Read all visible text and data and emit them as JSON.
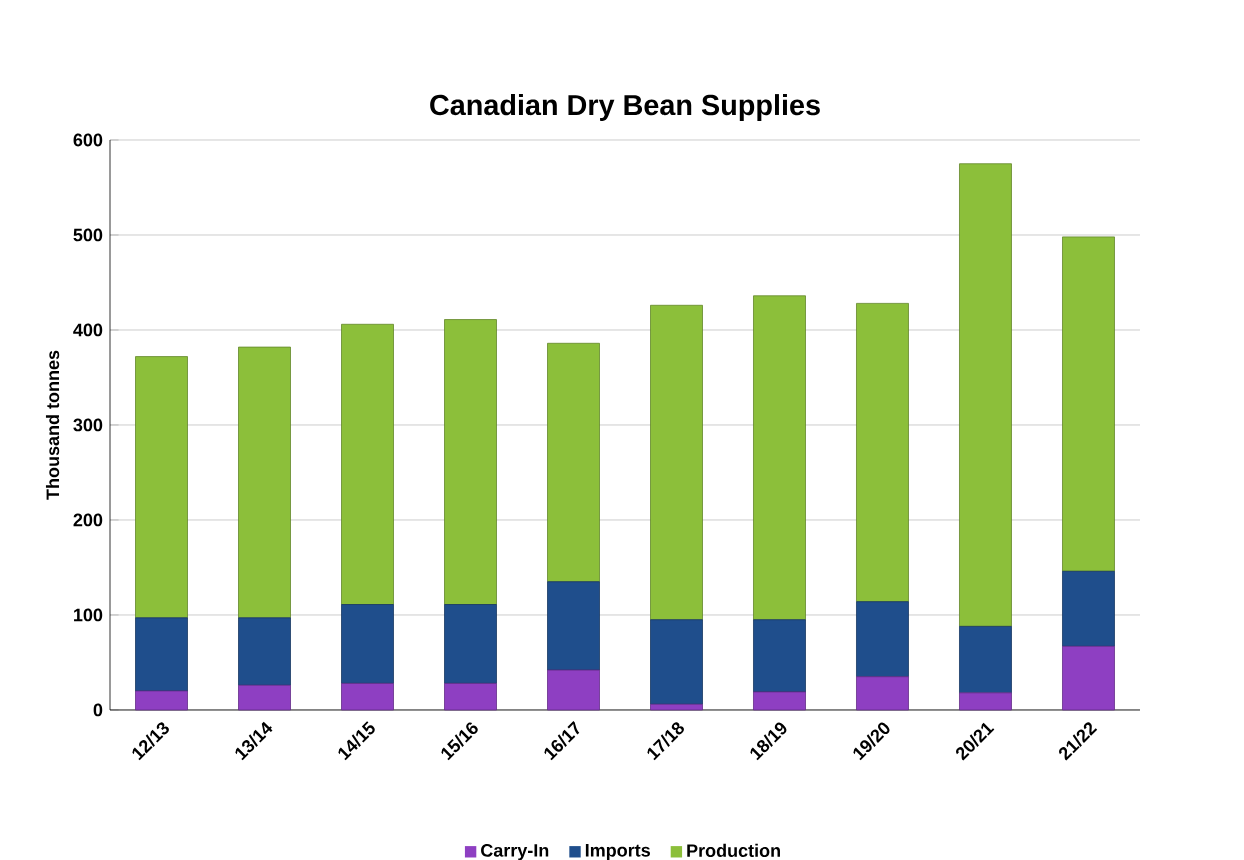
{
  "chart_data": {
    "type": "bar",
    "title": "Canadian Dry Bean Supplies",
    "ylabel": "Thousand tonnes",
    "categories": [
      "12/13",
      "13/14",
      "14/15",
      "15/16",
      "16/17",
      "17/18",
      "18/19",
      "19/20",
      "20/21",
      "21/22"
    ],
    "stacked": true,
    "ylim": [
      0,
      600
    ],
    "yticks": [
      0,
      100,
      200,
      300,
      400,
      500,
      600
    ],
    "grid": "y",
    "legend": "bottom",
    "series": [
      {
        "name": "Carry-In",
        "color": "#8e3fc2",
        "values": [
          20,
          26,
          28,
          28,
          42,
          6,
          19,
          35,
          18,
          67
        ]
      },
      {
        "name": "Imports",
        "color": "#1f4e8c",
        "values": [
          77,
          71,
          83,
          83,
          93,
          89,
          76,
          79,
          70,
          79
        ]
      },
      {
        "name": "Production",
        "color": "#8cbf3a",
        "values": [
          275,
          285,
          295,
          300,
          251,
          331,
          341,
          314,
          487,
          352
        ]
      }
    ]
  }
}
